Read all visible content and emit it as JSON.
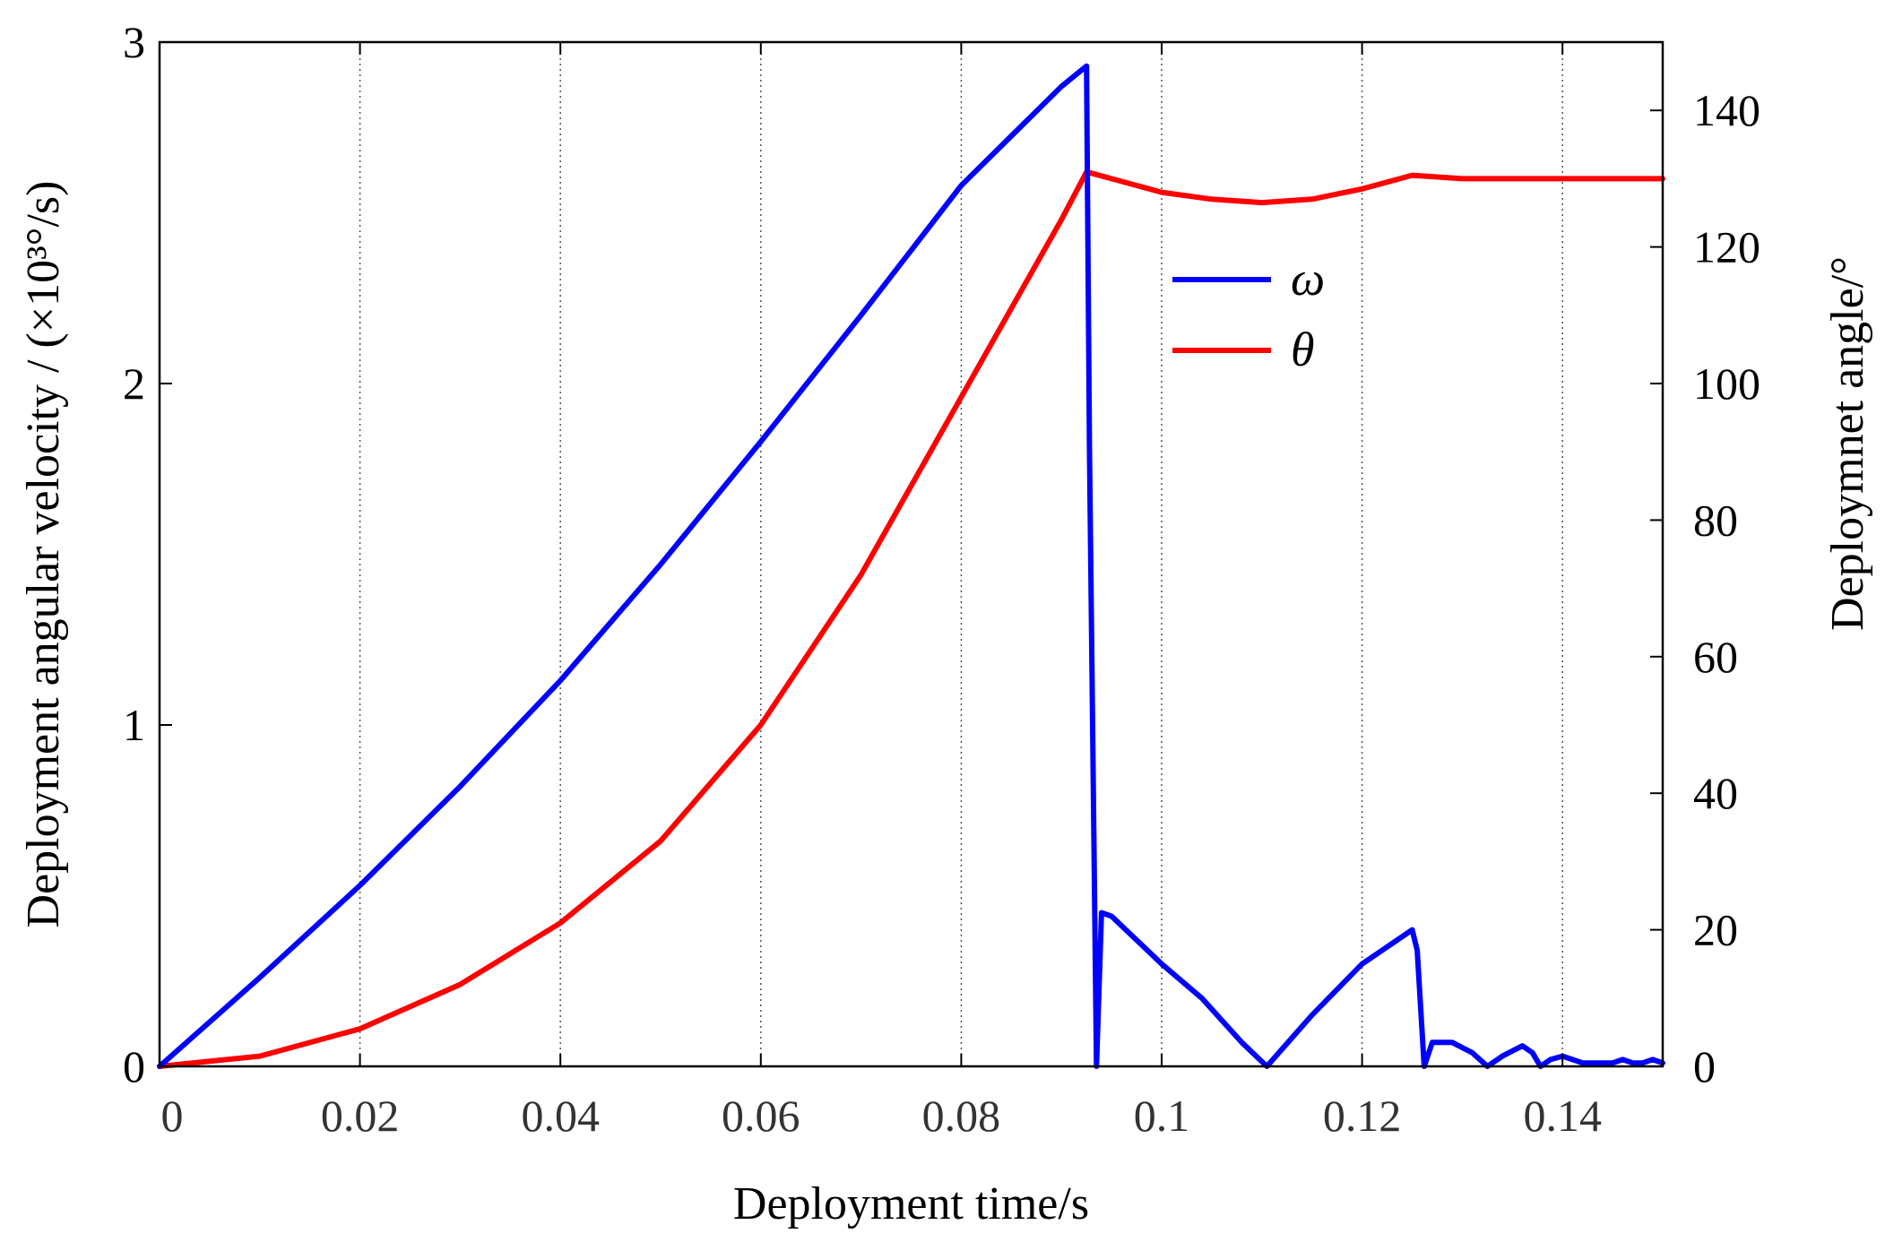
{
  "chart_data": {
    "type": "line",
    "xlabel": "Deployment time/s",
    "ylabel_left": "Deployment angular velocity / (×10³°/s)",
    "ylabel_right": "Deploymnet angle/°",
    "xlim": [
      0,
      0.15
    ],
    "ylim_left": [
      0,
      3
    ],
    "ylim_right": [
      0,
      150
    ],
    "x_ticks": [
      0,
      0.02,
      0.04,
      0.06,
      0.08,
      0.1,
      0.12,
      0.14
    ],
    "x_tick_labels": [
      "0",
      "0.02",
      "0.04",
      "0.06",
      "0.08",
      "0.1",
      "0.12",
      "0.14"
    ],
    "y_left_ticks": [
      0,
      1,
      2,
      3
    ],
    "y_left_tick_labels": [
      "0",
      "1",
      "2",
      "3"
    ],
    "y_right_ticks": [
      0,
      20,
      40,
      60,
      80,
      100,
      120,
      140
    ],
    "y_right_tick_labels": [
      "0",
      "20",
      "40",
      "60",
      "80",
      "100",
      "120",
      "140"
    ],
    "grid": "vertical dotted",
    "legend_position": "upper-center-right",
    "series": [
      {
        "name": "ω",
        "axis": "left",
        "color": "#0000ff",
        "x": [
          0,
          0.01,
          0.02,
          0.03,
          0.04,
          0.05,
          0.06,
          0.07,
          0.08,
          0.09,
          0.0925,
          0.0928,
          0.0935,
          0.094,
          0.095,
          0.1,
          0.104,
          0.108,
          0.1105,
          0.115,
          0.12,
          0.125,
          0.1255,
          0.1262,
          0.127,
          0.129,
          0.131,
          0.1325,
          0.134,
          0.136,
          0.137,
          0.1378,
          0.1388,
          0.14,
          0.141,
          0.142,
          0.143,
          0.144,
          0.145,
          0.146,
          0.147,
          0.148,
          0.149,
          0.15
        ],
        "y": [
          0,
          0.26,
          0.53,
          0.82,
          1.13,
          1.47,
          1.83,
          2.2,
          2.58,
          2.87,
          2.93,
          1.8,
          0,
          0.45,
          0.44,
          0.3,
          0.2,
          0.07,
          0,
          0.15,
          0.3,
          0.4,
          0.34,
          0,
          0.07,
          0.07,
          0.04,
          0,
          0.03,
          0.06,
          0.04,
          0,
          0.02,
          0.03,
          0.02,
          0.01,
          0.01,
          0.01,
          0.01,
          0.02,
          0.01,
          0.01,
          0.02,
          0.01
        ]
      },
      {
        "name": "θ",
        "axis": "right",
        "color": "#ff0000",
        "x": [
          0,
          0.01,
          0.02,
          0.03,
          0.04,
          0.05,
          0.06,
          0.07,
          0.08,
          0.09,
          0.0925,
          0.095,
          0.1,
          0.105,
          0.11,
          0.115,
          0.12,
          0.125,
          0.13,
          0.14,
          0.15
        ],
        "y": [
          0,
          1.5,
          5.5,
          12,
          21,
          33,
          50,
          72,
          98,
          124,
          131,
          130,
          128,
          127,
          126.5,
          127,
          128.5,
          130.5,
          130,
          130,
          130
        ]
      }
    ]
  }
}
